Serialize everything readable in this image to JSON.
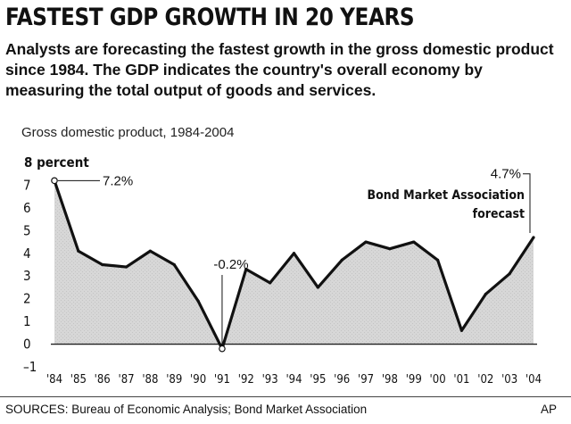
{
  "header": {
    "title": "FASTEST GDP GROWTH IN 20 YEARS",
    "subtitle": "Analysts are forecasting the fastest growth in the gross domestic product since 1984. The GDP indicates the country's overall economy by measuring the total output of goods and services."
  },
  "footer": {
    "sources": "SOURCES: Bureau of Economic Analysis; Bond Market Association",
    "credit": "AP"
  },
  "colors": {
    "line": "#111111",
    "fill": "#d4d4d4",
    "axis": "#222222"
  },
  "chart_data": {
    "type": "line",
    "title": "Gross domestic product, 1984-2004",
    "ylabel": "8 percent",
    "xlabel": "",
    "ylim": [
      -1,
      8
    ],
    "y_ticks": [
      "8 percent",
      "7",
      "6",
      "5",
      "4",
      "3",
      "2",
      "1",
      "0",
      "–1"
    ],
    "categories": [
      "'84",
      "'85",
      "'86",
      "'87",
      "'88",
      "'89",
      "'90",
      "'91",
      "'92",
      "'93",
      "'94",
      "'95",
      "'96",
      "'97",
      "'98",
      "'99",
      "'00",
      "'01",
      "'02",
      "'03",
      "'04"
    ],
    "values": [
      7.2,
      4.1,
      3.5,
      3.4,
      4.1,
      3.5,
      1.9,
      -0.2,
      3.3,
      2.7,
      4.0,
      2.5,
      3.7,
      4.5,
      4.2,
      4.5,
      3.7,
      0.6,
      2.2,
      3.1,
      4.7
    ],
    "annotations": [
      {
        "label": "7.2%",
        "category": "'84"
      },
      {
        "label": "-0.2%",
        "category": "'91"
      },
      {
        "label": "4.7%",
        "category": "'04"
      },
      {
        "label": "Bond Market Association",
        "category": "'04"
      },
      {
        "label": "forecast",
        "category": "'04"
      }
    ]
  }
}
